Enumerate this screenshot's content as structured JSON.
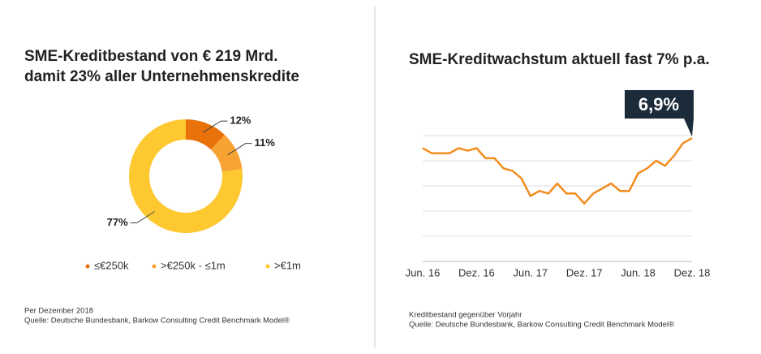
{
  "chart_data": [
    {
      "type": "pie",
      "title": [
        "SME-Kreditbestand von € 219 Mrd.",
        "damit 23% aller Unternehmenskredite"
      ],
      "categories": [
        "≤€250k",
        ">€250k - ≤1m",
        ">€1m"
      ],
      "values": [
        12,
        11,
        77
      ],
      "value_labels": [
        "12%",
        "11%",
        "77%"
      ],
      "colors": [
        "#e8710a",
        "#f7a233",
        "#fdc830"
      ],
      "legend": "bottom",
      "notes": [
        "Per Dezember 2018",
        "Quelle: Deutsche Bundesbank, Barkow Consulting Credit Benchmark Model®"
      ]
    },
    {
      "type": "line",
      "title": "SME-Kreditwachstum aktuell fast 7% p.a.",
      "categories": [
        "Jun. 16",
        null,
        null,
        null,
        null,
        null,
        "Dez. 16",
        null,
        null,
        null,
        null,
        null,
        "Jun. 17",
        null,
        null,
        null,
        null,
        null,
        "Dez. 17",
        null,
        null,
        null,
        null,
        null,
        "Jun. 18",
        null,
        null,
        null,
        null,
        null,
        "Dez. 18"
      ],
      "series": [
        {
          "name": "Kreditbestand gegenüber Vorjahr",
          "color": "#f28c1e",
          "values": [
            6.5,
            6.3,
            6.3,
            6.3,
            6.5,
            6.4,
            6.5,
            6.1,
            6.1,
            5.7,
            5.6,
            5.3,
            4.6,
            4.8,
            4.7,
            5.1,
            4.7,
            4.7,
            4.3,
            4.7,
            4.9,
            5.1,
            4.8,
            4.8,
            5.5,
            5.7,
            6.0,
            5.8,
            6.2,
            6.7,
            6.9
          ]
        }
      ],
      "ylim": [
        2,
        7.5
      ],
      "yticks": [
        3,
        4,
        5,
        6,
        7
      ],
      "grid": true,
      "annotation": "6,9%",
      "notes": [
        "Kreditbestand gegenüber Vorjahr",
        "Quelle: Deutsche Bundesbank, Barkow Consulting Credit Benchmark Model®"
      ]
    }
  ]
}
